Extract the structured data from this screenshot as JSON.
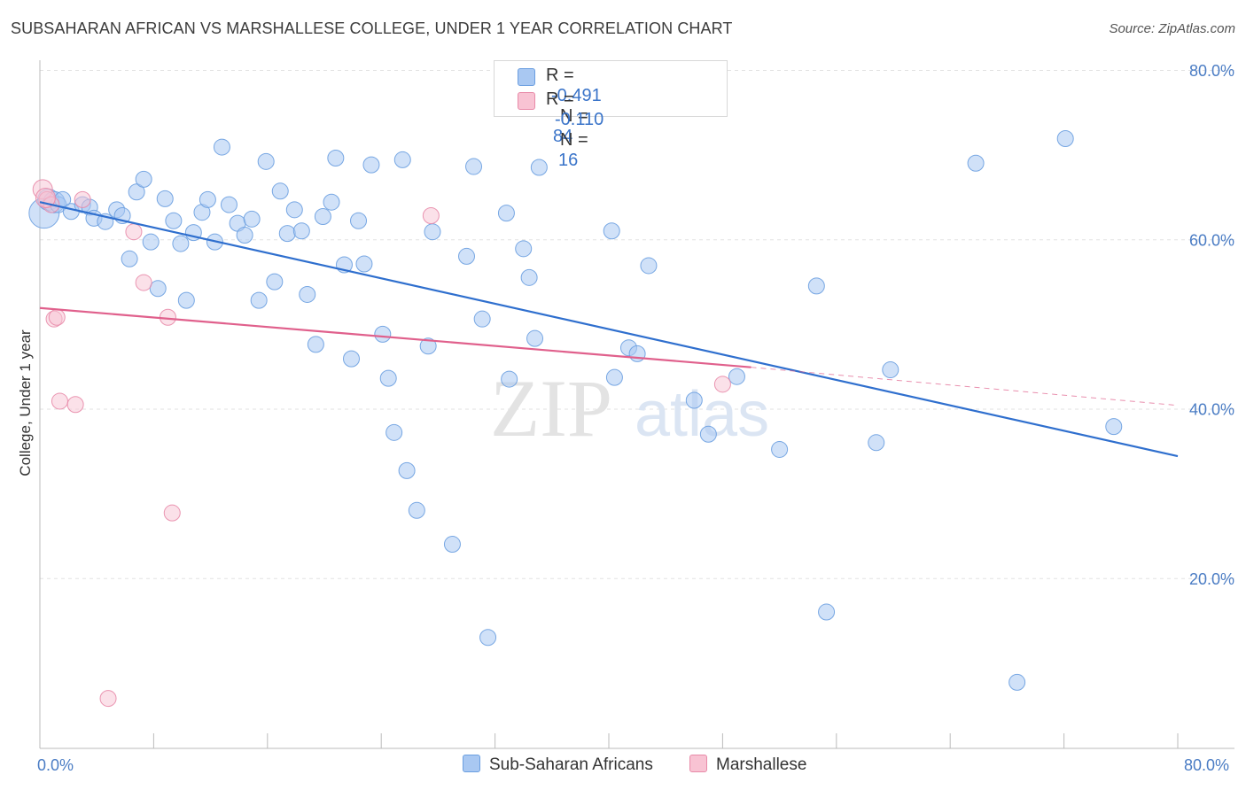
{
  "title": "SUBSAHARAN AFRICAN VS MARSHALLESE COLLEGE, UNDER 1 YEAR CORRELATION CHART",
  "source": "Source: ZipAtlas.com",
  "watermark": {
    "zip": "ZIP",
    "atlas": "atlas"
  },
  "legend": {
    "rows": [
      {
        "r_label": "R =",
        "r_value": "-0.491",
        "n_label": "N =",
        "n_value": "84",
        "color": "#a9c8f2",
        "border": "#6a9ee0"
      },
      {
        "r_label": "R =",
        "r_value": "-0.110",
        "n_label": "N =",
        "n_value": "16",
        "color": "#f8c3d3",
        "border": "#e88aa8"
      }
    ]
  },
  "bottom_legend": [
    {
      "label": "Sub-Saharan Africans",
      "color": "#a9c8f2",
      "border": "#6a9ee0"
    },
    {
      "label": "Marshallese",
      "color": "#f8c3d3",
      "border": "#e88aa8"
    }
  ],
  "chart_data": {
    "type": "scatter",
    "title": "SUBSAHARAN AFRICAN VS MARSHALLESE COLLEGE, UNDER 1 YEAR CORRELATION CHART",
    "xlabel": "",
    "ylabel": "College, Under 1 year",
    "xlim": [
      0,
      80
    ],
    "ylim": [
      0,
      80
    ],
    "x_tick_labels": [
      "0.0%",
      "80.0%"
    ],
    "y_tick_labels": [
      "20.0%",
      "40.0%",
      "60.0%",
      "80.0%"
    ],
    "y_ticks": [
      20,
      40,
      60,
      80
    ],
    "grid": true,
    "series": [
      {
        "name": "Sub-Saharan Africans",
        "color": "#6a9ee0",
        "fill": "#a9c8f2",
        "trend": {
          "x": [
            0,
            80
          ],
          "y": [
            64.5,
            34.5
          ]
        },
        "points": [
          [
            0.3,
            63.2
          ],
          [
            0.6,
            64.8
          ],
          [
            1.0,
            64.5
          ],
          [
            1.3,
            64.2
          ],
          [
            1.6,
            64.8
          ],
          [
            2.2,
            63.4
          ],
          [
            3.0,
            64.2
          ],
          [
            3.5,
            63.9
          ],
          [
            3.8,
            62.6
          ],
          [
            4.6,
            62.2
          ],
          [
            5.4,
            63.6
          ],
          [
            5.8,
            62.9
          ],
          [
            6.3,
            57.8
          ],
          [
            6.8,
            65.7
          ],
          [
            7.3,
            67.2
          ],
          [
            7.8,
            59.8
          ],
          [
            8.3,
            54.3
          ],
          [
            8.8,
            64.9
          ],
          [
            9.4,
            62.3
          ],
          [
            9.9,
            59.6
          ],
          [
            10.3,
            52.9
          ],
          [
            10.8,
            60.9
          ],
          [
            11.4,
            63.3
          ],
          [
            11.8,
            64.8
          ],
          [
            12.3,
            59.8
          ],
          [
            12.8,
            71.0
          ],
          [
            13.3,
            64.2
          ],
          [
            13.9,
            62.0
          ],
          [
            14.4,
            60.6
          ],
          [
            14.9,
            62.5
          ],
          [
            15.4,
            52.9
          ],
          [
            15.9,
            69.3
          ],
          [
            16.5,
            55.1
          ],
          [
            16.9,
            65.8
          ],
          [
            17.4,
            60.8
          ],
          [
            17.9,
            63.6
          ],
          [
            18.4,
            61.1
          ],
          [
            18.8,
            53.6
          ],
          [
            19.4,
            47.7
          ],
          [
            19.9,
            62.8
          ],
          [
            20.5,
            64.5
          ],
          [
            20.8,
            69.7
          ],
          [
            21.4,
            57.1
          ],
          [
            21.9,
            46.0
          ],
          [
            22.4,
            62.3
          ],
          [
            22.8,
            57.2
          ],
          [
            23.3,
            68.9
          ],
          [
            24.1,
            48.9
          ],
          [
            24.5,
            43.7
          ],
          [
            24.9,
            37.3
          ],
          [
            25.5,
            69.5
          ],
          [
            25.8,
            32.8
          ],
          [
            26.5,
            28.1
          ],
          [
            27.3,
            47.5
          ],
          [
            27.6,
            61.0
          ],
          [
            29.0,
            24.1
          ],
          [
            30.0,
            58.1
          ],
          [
            30.5,
            68.7
          ],
          [
            31.1,
            50.7
          ],
          [
            31.5,
            13.1
          ],
          [
            32.8,
            63.2
          ],
          [
            33.0,
            43.6
          ],
          [
            34.0,
            59.0
          ],
          [
            34.4,
            55.6
          ],
          [
            34.8,
            48.4
          ],
          [
            35.1,
            68.6
          ],
          [
            40.2,
            61.1
          ],
          [
            40.4,
            43.8
          ],
          [
            41.4,
            47.3
          ],
          [
            42.0,
            46.6
          ],
          [
            42.8,
            57.0
          ],
          [
            46.0,
            41.1
          ],
          [
            47.0,
            37.1
          ],
          [
            49.0,
            43.9
          ],
          [
            52.0,
            35.3
          ],
          [
            54.6,
            54.6
          ],
          [
            55.3,
            16.1
          ],
          [
            58.8,
            36.1
          ],
          [
            59.8,
            44.7
          ],
          [
            65.8,
            69.1
          ],
          [
            68.7,
            7.8
          ],
          [
            72.1,
            72.0
          ],
          [
            75.5,
            38.0
          ],
          [
            33.9,
            80.0
          ]
        ]
      },
      {
        "name": "Marshallese",
        "color": "#e88aa8",
        "fill": "#f8c3d3",
        "trend": {
          "x": [
            0,
            50
          ],
          "y": [
            52.0,
            45.0
          ]
        },
        "trend_dashed": {
          "x": [
            50,
            80
          ],
          "y": [
            45.0,
            40.5
          ]
        },
        "points": [
          [
            0.2,
            66.0
          ],
          [
            0.5,
            64.8
          ],
          [
            0.8,
            64.2
          ],
          [
            1.0,
            50.7
          ],
          [
            1.2,
            50.9
          ],
          [
            1.4,
            41.0
          ],
          [
            2.5,
            40.6
          ],
          [
            3.0,
            64.8
          ],
          [
            4.8,
            5.9
          ],
          [
            6.6,
            61.0
          ],
          [
            7.3,
            55.0
          ],
          [
            9.0,
            50.9
          ],
          [
            9.3,
            27.8
          ],
          [
            27.5,
            62.9
          ],
          [
            48.0,
            43.0
          ],
          [
            0.4,
            65.0
          ]
        ]
      }
    ]
  }
}
